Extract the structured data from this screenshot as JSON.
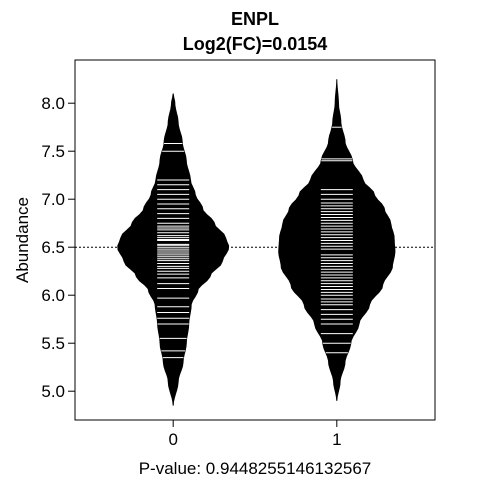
{
  "chart_data": {
    "type": "beanplot",
    "title": "ENPL",
    "subtitle": "Log2(FC)=0.0154",
    "ylabel": "Abundance",
    "xlabel": "P-value: 0.9448255146132567",
    "categories": [
      "0",
      "1"
    ],
    "ylim": [
      4.7,
      8.45
    ],
    "xlim": [
      -0.6,
      1.6
    ],
    "yticks": [
      5.0,
      5.5,
      6.0,
      6.5,
      7.0,
      7.5,
      8.0
    ],
    "ytick_labels": [
      "5.0",
      "5.5",
      "6.0",
      "6.5",
      "7.0",
      "7.5",
      "8.0"
    ],
    "overall_line": 6.5,
    "bean_color": "#000000",
    "line_color": "#ffffff",
    "beans": [
      {
        "category": "0",
        "median": 6.55,
        "range": [
          4.85,
          8.1
        ],
        "density": [
          [
            4.85,
            0.0
          ],
          [
            5.1,
            0.06
          ],
          [
            5.3,
            0.12
          ],
          [
            5.5,
            0.16
          ],
          [
            5.7,
            0.19
          ],
          [
            5.9,
            0.22
          ],
          [
            6.05,
            0.3
          ],
          [
            6.2,
            0.45
          ],
          [
            6.35,
            0.6
          ],
          [
            6.5,
            0.68
          ],
          [
            6.6,
            0.64
          ],
          [
            6.75,
            0.5
          ],
          [
            6.9,
            0.36
          ],
          [
            7.05,
            0.27
          ],
          [
            7.2,
            0.21
          ],
          [
            7.4,
            0.16
          ],
          [
            7.6,
            0.11
          ],
          [
            7.8,
            0.06
          ],
          [
            8.0,
            0.02
          ],
          [
            8.1,
            0.0
          ]
        ],
        "observations": [
          5.35,
          5.42,
          5.55,
          5.7,
          5.76,
          5.82,
          5.88,
          5.97,
          6.07,
          6.12,
          6.18,
          6.22,
          6.25,
          6.28,
          6.3,
          6.33,
          6.36,
          6.38,
          6.4,
          6.42,
          6.44,
          6.46,
          6.48,
          6.5,
          6.52,
          6.53,
          6.55,
          6.57,
          6.58,
          6.6,
          6.62,
          6.65,
          6.68,
          6.7,
          6.72,
          6.75,
          6.8,
          6.85,
          6.9,
          6.95,
          7.0,
          7.05,
          7.1,
          7.15,
          7.2,
          7.5,
          7.58
        ]
      },
      {
        "category": "1",
        "median": 6.45,
        "range": [
          4.9,
          8.25
        ],
        "density": [
          [
            4.9,
            0.0
          ],
          [
            5.1,
            0.04
          ],
          [
            5.3,
            0.1
          ],
          [
            5.5,
            0.17
          ],
          [
            5.7,
            0.27
          ],
          [
            5.9,
            0.4
          ],
          [
            6.1,
            0.56
          ],
          [
            6.3,
            0.68
          ],
          [
            6.45,
            0.71
          ],
          [
            6.6,
            0.7
          ],
          [
            6.75,
            0.66
          ],
          [
            6.9,
            0.58
          ],
          [
            7.05,
            0.46
          ],
          [
            7.2,
            0.32
          ],
          [
            7.4,
            0.19
          ],
          [
            7.6,
            0.1
          ],
          [
            7.8,
            0.05
          ],
          [
            8.0,
            0.02
          ],
          [
            8.25,
            0.0
          ]
        ],
        "observations": [
          5.4,
          5.5,
          5.6,
          5.7,
          5.75,
          5.8,
          5.85,
          5.9,
          5.93,
          5.96,
          6.0,
          6.03,
          6.06,
          6.09,
          6.12,
          6.15,
          6.18,
          6.21,
          6.24,
          6.27,
          6.3,
          6.33,
          6.36,
          6.39,
          6.42,
          6.45,
          6.48,
          6.51,
          6.54,
          6.57,
          6.6,
          6.63,
          6.66,
          6.69,
          6.72,
          6.75,
          6.78,
          6.81,
          6.84,
          6.87,
          6.9,
          6.93,
          6.96,
          7.0,
          7.05,
          7.1,
          7.4,
          7.42,
          7.75
        ]
      }
    ]
  }
}
